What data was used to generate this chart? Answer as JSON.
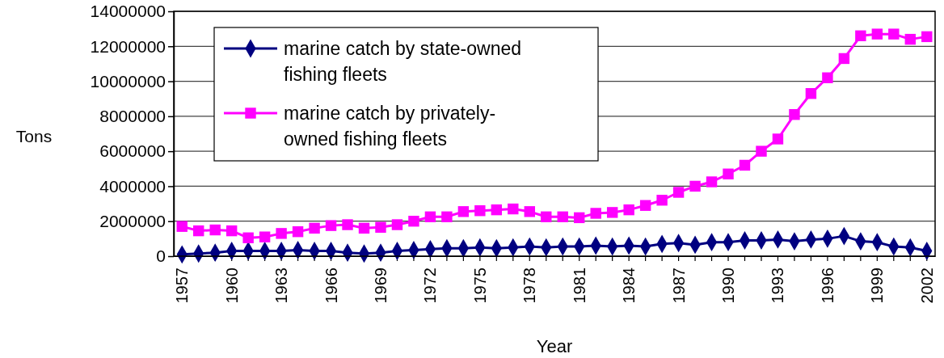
{
  "chart_data": {
    "type": "line",
    "xlabel": "Year",
    "ylabel": "Tons",
    "categories": [
      "1957",
      null,
      null,
      "1960",
      null,
      null,
      "1963",
      null,
      null,
      "1966",
      null,
      null,
      "1969",
      null,
      null,
      "1972",
      null,
      null,
      "1975",
      null,
      null,
      "1978",
      null,
      null,
      "1981",
      null,
      null,
      "1984",
      null,
      null,
      "1987",
      null,
      null,
      "1990",
      null,
      null,
      "1993",
      null,
      null,
      "1996",
      null,
      null,
      "1999",
      null,
      null,
      "2002"
    ],
    "series": [
      {
        "name": "marine catch by state-owned fishing fleets",
        "color": "#000080",
        "marker": "diamond",
        "values": [
          100000,
          150000,
          200000,
          300000,
          300000,
          300000,
          300000,
          350000,
          300000,
          300000,
          200000,
          150000,
          200000,
          300000,
          350000,
          400000,
          450000,
          450000,
          500000,
          450000,
          500000,
          550000,
          500000,
          550000,
          550000,
          600000,
          550000,
          600000,
          550000,
          700000,
          750000,
          650000,
          800000,
          800000,
          900000,
          900000,
          950000,
          850000,
          950000,
          1000000,
          1150000,
          850000,
          800000,
          550000,
          500000,
          300000
        ]
      },
      {
        "name": "marine catch by privately-owned fishing fleets",
        "color": "#ff00ff",
        "marker": "square",
        "values": [
          1700000,
          1450000,
          1500000,
          1450000,
          1050000,
          1100000,
          1300000,
          1400000,
          1600000,
          1750000,
          1800000,
          1600000,
          1650000,
          1800000,
          2000000,
          2250000,
          2250000,
          2550000,
          2600000,
          2650000,
          2700000,
          2550000,
          2250000,
          2250000,
          2200000,
          2450000,
          2500000,
          2650000,
          2900000,
          3200000,
          3650000,
          4000000,
          4250000,
          4700000,
          5200000,
          6000000,
          6700000,
          8100000,
          9300000,
          10200000,
          11300000,
          12600000,
          12700000,
          12700000,
          12400000,
          12550000
        ]
      }
    ],
    "ylim": [
      0,
      14000000
    ],
    "yticks": [
      0,
      2000000,
      4000000,
      6000000,
      8000000,
      10000000,
      12000000,
      14000000
    ],
    "grid": "y",
    "legend": "top left"
  }
}
